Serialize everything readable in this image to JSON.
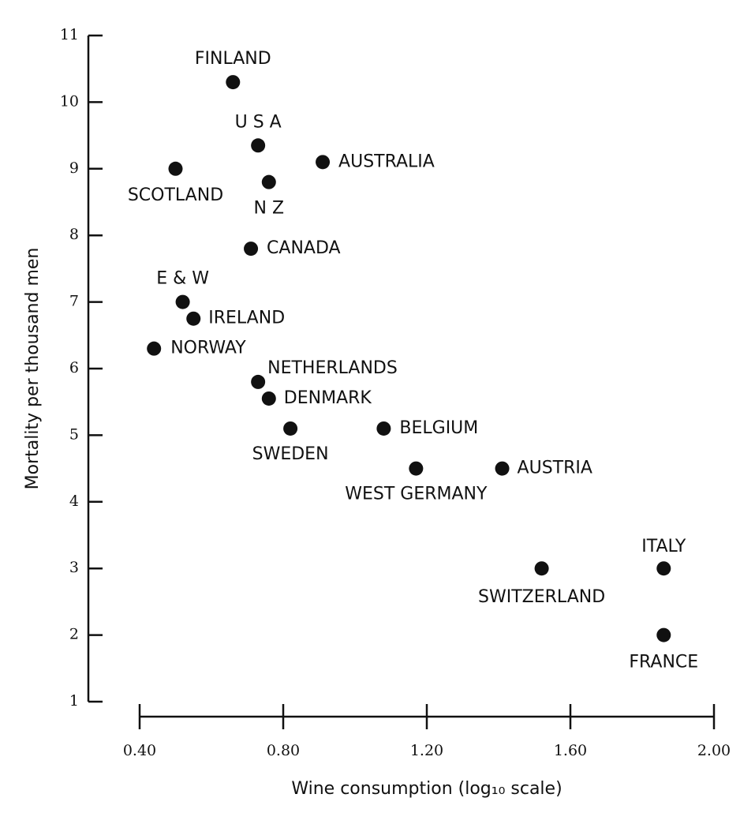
{
  "chart_data": {
    "type": "scatter",
    "x_label": "Wine consumption (log₁₀ scale)",
    "y_label": "Mortality per thousand men",
    "labels": [
      "FINLAND",
      "U S A",
      "AUSTRALIA",
      "SCOTLAND",
      "N Z",
      "CANADA",
      "E & W",
      "IRELAND",
      "NORWAY",
      "NETHERLANDS",
      "DENMARK",
      "SWEDEN",
      "BELGIUM",
      "WEST GERMANY",
      "AUSTRIA",
      "SWITZERLAND",
      "ITALY",
      "FRANCE"
    ],
    "x": [
      0.66,
      0.73,
      0.91,
      0.5,
      0.76,
      0.71,
      0.52,
      0.55,
      0.44,
      0.73,
      0.76,
      0.82,
      1.08,
      1.17,
      1.41,
      1.52,
      1.86,
      1.86
    ],
    "values": [
      10.3,
      9.35,
      9.1,
      9.0,
      8.8,
      7.8,
      7.0,
      6.75,
      6.3,
      5.8,
      5.55,
      5.1,
      5.1,
      4.5,
      4.5,
      3.0,
      3.0,
      2.0
    ],
    "color": "#111111",
    "xlim": [
      0.4,
      2.0
    ],
    "xticks": [
      {
        "value": 0.4,
        "label": "0.40"
      },
      {
        "value": 0.8,
        "label": "0.80"
      },
      {
        "value": 1.2,
        "label": "1.20"
      },
      {
        "value": 1.6,
        "label": "1.60"
      },
      {
        "value": 2.0,
        "label": "2.00"
      }
    ],
    "ylim": [
      1,
      11
    ],
    "yticks": [
      1,
      2,
      3,
      4,
      5,
      6,
      7,
      8,
      9,
      10,
      11
    ]
  }
}
